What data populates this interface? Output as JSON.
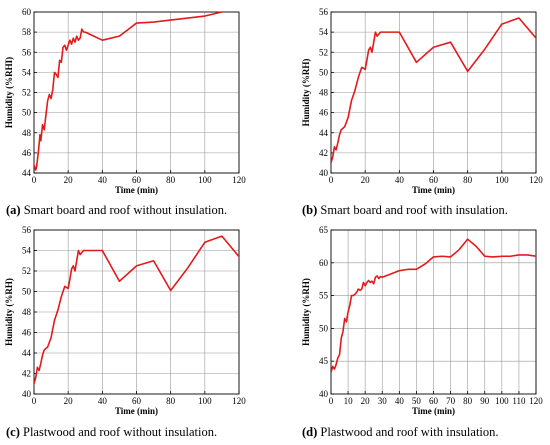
{
  "series_color": "#e31a1c",
  "chart_data": [
    {
      "type": "line",
      "label": "(a)",
      "caption": "Smart board and roof without insulation.",
      "xlabel": "Time (min)",
      "ylabel": "Humidity (%RHI)",
      "xlim": [
        0,
        120
      ],
      "ylim": [
        44,
        60
      ],
      "xticks": [
        "0",
        "20",
        "40",
        "60",
        "80",
        "100",
        "120"
      ],
      "yticks": [
        "44",
        "46",
        "48",
        "50",
        "52",
        "54",
        "56",
        "58",
        "60"
      ],
      "grid": true,
      "x": [
        0,
        1,
        1.5,
        2.5,
        3.5,
        4,
        5,
        6,
        7,
        8,
        9,
        10,
        11,
        12,
        13,
        14,
        15,
        16,
        17,
        18,
        19,
        20,
        21,
        22,
        23,
        24,
        25,
        26,
        27,
        28,
        29,
        30,
        35,
        40,
        50,
        60,
        70,
        80,
        90,
        100,
        110
      ],
      "y": [
        44.8,
        44.3,
        44.6,
        46.0,
        47.8,
        47.2,
        48.8,
        48.3,
        49.8,
        51.2,
        51.8,
        51.4,
        52.3,
        54.0,
        53.8,
        53.5,
        55.2,
        55.0,
        56.5,
        56.7,
        56.2,
        56.7,
        57.2,
        56.8,
        57.4,
        57.0,
        57.6,
        57.2,
        57.4,
        58.3,
        58.0,
        58.0,
        57.6,
        57.2,
        57.6,
        58.9,
        59.0,
        59.2,
        59.4,
        59.6,
        60.0
      ]
    },
    {
      "type": "line",
      "label": "(b)",
      "caption": "Smart board and roof with insulation.",
      "xlabel": "Time (min)",
      "ylabel": "Humidity (%RH)",
      "xlim": [
        0,
        120
      ],
      "ylim": [
        40,
        56
      ],
      "xticks": [
        "0",
        "20",
        "40",
        "60",
        "80",
        "100",
        "120"
      ],
      "yticks": [
        "40",
        "42",
        "44",
        "46",
        "48",
        "50",
        "52",
        "54",
        "56"
      ],
      "grid": true,
      "x": [
        0,
        1,
        2,
        3,
        4,
        5,
        6,
        8,
        10,
        12,
        14,
        16,
        18,
        20,
        21,
        22,
        23,
        24,
        25,
        26,
        27,
        28,
        29,
        30,
        40,
        50,
        60,
        70,
        80,
        90,
        100,
        110,
        120
      ],
      "y": [
        41.0,
        41.6,
        42.6,
        42.3,
        43.0,
        43.8,
        44.3,
        44.6,
        45.5,
        47.2,
        48.2,
        49.5,
        50.5,
        50.3,
        51.2,
        52.2,
        52.5,
        52.0,
        53.0,
        54.0,
        53.6,
        53.8,
        54.0,
        54.0,
        54.0,
        51.0,
        52.5,
        53.0,
        50.1,
        52.3,
        54.8,
        55.4,
        53.4
      ]
    },
    {
      "type": "line",
      "label": "(c)",
      "caption": "Plastwood and roof without insulation.",
      "xlabel": "Time (min)",
      "ylabel": "Humidity (%RH)",
      "xlim": [
        0,
        120
      ],
      "ylim": [
        40,
        56
      ],
      "xticks": [
        "0",
        "20",
        "40",
        "60",
        "80",
        "100",
        "120"
      ],
      "yticks": [
        "40",
        "42",
        "44",
        "46",
        "48",
        "50",
        "52",
        "54",
        "56"
      ],
      "grid": true,
      "x": [
        0,
        1,
        2,
        3,
        4,
        5,
        6,
        8,
        10,
        12,
        14,
        16,
        18,
        20,
        21,
        22,
        23,
        24,
        25,
        26,
        27,
        28,
        29,
        30,
        40,
        50,
        60,
        70,
        80,
        90,
        100,
        110,
        120
      ],
      "y": [
        41.0,
        41.6,
        42.6,
        42.3,
        43.0,
        43.8,
        44.3,
        44.6,
        45.5,
        47.2,
        48.2,
        49.5,
        50.5,
        50.3,
        51.2,
        52.2,
        52.5,
        52.0,
        53.0,
        54.0,
        53.6,
        53.8,
        54.0,
        54.0,
        54.0,
        51.0,
        52.5,
        53.0,
        50.1,
        52.3,
        54.8,
        55.4,
        53.4
      ]
    },
    {
      "type": "line",
      "label": "(d)",
      "caption": "Plastwood and roof with insulation.",
      "xlabel": "Time (min)",
      "ylabel": "Humidity (%RH)",
      "xlim": [
        0,
        120
      ],
      "ylim": [
        40,
        65
      ],
      "xticks": [
        "0",
        "10",
        "20",
        "30",
        "40",
        "50",
        "60",
        "70",
        "80",
        "90",
        "100",
        "110",
        "120"
      ],
      "yticks": [
        "40",
        "45",
        "50",
        "55",
        "60",
        "65"
      ],
      "grid": true,
      "x": [
        0,
        1,
        2,
        3,
        4,
        5,
        6,
        7,
        8,
        9,
        10,
        11,
        12,
        13,
        14,
        15,
        16,
        17,
        18,
        19,
        20,
        21,
        22,
        23,
        24,
        25,
        26,
        27,
        28,
        29,
        30,
        35,
        40,
        45,
        50,
        55,
        60,
        65,
        70,
        75,
        80,
        85,
        90,
        95,
        100,
        105,
        110,
        115,
        120
      ],
      "y": [
        43.3,
        44.2,
        43.8,
        44.5,
        45.5,
        46.0,
        48.5,
        49.5,
        51.5,
        51.0,
        52.5,
        53.5,
        55.0,
        55.0,
        55.2,
        55.5,
        56.0,
        55.8,
        56.0,
        57.0,
        56.5,
        57.0,
        57.3,
        57.0,
        57.2,
        56.8,
        57.8,
        58.0,
        57.6,
        57.9,
        57.8,
        58.3,
        58.8,
        59.0,
        59.0,
        59.8,
        60.9,
        61.0,
        60.9,
        62.0,
        63.6,
        62.5,
        61.0,
        60.9,
        61.0,
        61.0,
        61.2,
        61.2,
        61.0
      ]
    }
  ]
}
